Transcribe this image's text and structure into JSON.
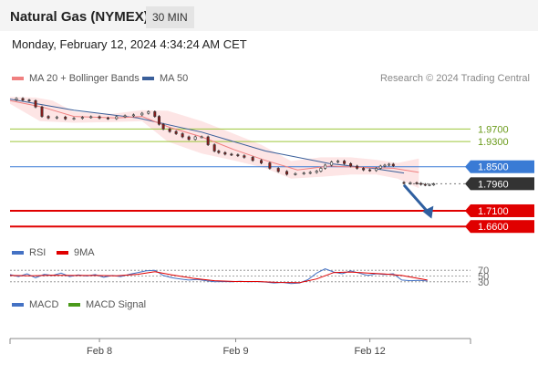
{
  "header": {
    "title": "Natural Gas (NYMEX)",
    "timeframe": "30 MIN",
    "datetime": "Monday, February 12, 2024 4:34:24 AM CET"
  },
  "legend": {
    "ma_bb_label": "MA 20 + Bollinger Bands",
    "ma_bb_color": "#f08080",
    "ma50_label": "MA 50",
    "ma50_color": "#3a5f9a"
  },
  "credit": "Research © 2024 Trading Central",
  "chart_data": {
    "type": "candlestick",
    "price_range": [
      1.62,
      2.09
    ],
    "levels": [
      {
        "label": "1.9700",
        "value": 1.97,
        "color": "#9dc63a",
        "text_color": "#6a9a1a",
        "style": "resistance"
      },
      {
        "label": "1.9300",
        "value": 1.93,
        "color": "#9dc63a",
        "text_color": "#6a9a1a",
        "style": "resistance"
      },
      {
        "label": "1.8500",
        "value": 1.85,
        "color": "#3a7bd5",
        "text_color": "#ffffff",
        "style": "pivot"
      },
      {
        "label": "1.7960",
        "value": 1.796,
        "color": "#333333",
        "text_color": "#ffffff",
        "style": "last"
      },
      {
        "label": "1.7100",
        "value": 1.71,
        "color": "#e00000",
        "text_color": "#ffffff",
        "style": "support"
      },
      {
        "label": "1.6600",
        "value": 1.66,
        "color": "#e00000",
        "text_color": "#ffffff",
        "style": "support"
      }
    ],
    "price_path": [
      [
        0,
        2.063
      ],
      [
        3,
        2.067
      ],
      [
        6,
        2.062
      ],
      [
        9,
        2.06
      ],
      [
        12,
        2.04
      ],
      [
        15,
        2.01
      ],
      [
        18,
        2.005
      ],
      [
        22,
        2.008
      ],
      [
        26,
        2.002
      ],
      [
        30,
        2.004
      ],
      [
        34,
        2.007
      ],
      [
        38,
        2.009
      ],
      [
        42,
        2.005
      ],
      [
        46,
        2.003
      ],
      [
        50,
        2.009
      ],
      [
        54,
        2.012
      ],
      [
        58,
        2.015
      ],
      [
        62,
        2.02
      ],
      [
        65,
        2.025
      ],
      [
        68,
        2.01
      ],
      [
        70,
        1.985
      ],
      [
        72,
        1.97
      ],
      [
        75,
        1.962
      ],
      [
        78,
        1.955
      ],
      [
        81,
        1.945
      ],
      [
        84,
        1.937
      ],
      [
        87,
        1.945
      ],
      [
        90,
        1.945
      ],
      [
        93,
        1.92
      ],
      [
        96,
        1.9
      ],
      [
        98,
        1.895
      ],
      [
        101,
        1.89
      ],
      [
        104,
        1.888
      ],
      [
        107,
        1.885
      ],
      [
        110,
        1.88
      ],
      [
        114,
        1.87
      ],
      [
        118,
        1.862
      ],
      [
        122,
        1.845
      ],
      [
        126,
        1.835
      ],
      [
        130,
        1.826
      ],
      [
        134,
        1.828
      ],
      [
        138,
        1.83
      ],
      [
        141,
        1.832
      ],
      [
        144,
        1.836
      ],
      [
        146,
        1.845
      ],
      [
        148,
        1.855
      ],
      [
        151,
        1.865
      ],
      [
        154,
        1.868
      ],
      [
        157,
        1.86
      ],
      [
        160,
        1.852
      ],
      [
        163,
        1.845
      ],
      [
        166,
        1.84
      ],
      [
        169,
        1.838
      ],
      [
        172,
        1.845
      ],
      [
        174,
        1.852
      ],
      [
        176,
        1.855
      ],
      [
        178,
        1.858
      ],
      [
        180,
        1.853
      ]
    ],
    "post_gap_path": [
      [
        182,
        1.8
      ],
      [
        185,
        1.797
      ],
      [
        188,
        1.799
      ],
      [
        191,
        1.797
      ],
      [
        193,
        1.794
      ],
      [
        195,
        1.792
      ],
      [
        197,
        1.793
      ],
      [
        199,
        1.795
      ]
    ],
    "ma50_path": [
      [
        0,
        2.065
      ],
      [
        30,
        2.03
      ],
      [
        60,
        2.005
      ],
      [
        90,
        1.96
      ],
      [
        120,
        1.9
      ],
      [
        150,
        1.86
      ],
      [
        170,
        1.845
      ],
      [
        185,
        1.83
      ]
    ],
    "ma20_path": [
      [
        0,
        2.06
      ],
      [
        15,
        2.04
      ],
      [
        30,
        2.01
      ],
      [
        50,
        2.005
      ],
      [
        62,
        2.01
      ],
      [
        75,
        1.975
      ],
      [
        90,
        1.945
      ],
      [
        105,
        1.905
      ],
      [
        120,
        1.87
      ],
      [
        135,
        1.84
      ],
      [
        150,
        1.852
      ],
      [
        165,
        1.848
      ],
      [
        180,
        1.845
      ],
      [
        192,
        1.832
      ]
    ],
    "bb_upper": [
      [
        0,
        2.072
      ],
      [
        12,
        2.07
      ],
      [
        20,
        2.06
      ],
      [
        30,
        2.025
      ],
      [
        48,
        2.018
      ],
      [
        62,
        2.03
      ],
      [
        74,
        2.028
      ],
      [
        90,
        1.995
      ],
      [
        105,
        1.955
      ],
      [
        118,
        1.92
      ],
      [
        132,
        1.868
      ],
      [
        146,
        1.88
      ],
      [
        160,
        1.88
      ],
      [
        172,
        1.872
      ],
      [
        182,
        1.862
      ],
      [
        192,
        1.876
      ]
    ],
    "bb_lower": [
      [
        0,
        2.05
      ],
      [
        14,
        1.995
      ],
      [
        30,
        1.99
      ],
      [
        48,
        1.992
      ],
      [
        62,
        1.995
      ],
      [
        74,
        1.93
      ],
      [
        90,
        1.892
      ],
      [
        105,
        1.87
      ],
      [
        120,
        1.845
      ],
      [
        132,
        1.812
      ],
      [
        146,
        1.818
      ],
      [
        160,
        1.825
      ],
      [
        172,
        1.825
      ],
      [
        182,
        1.812
      ],
      [
        192,
        1.782
      ]
    ],
    "forecast_arrow": {
      "from": [
        185,
        1.792
      ],
      "to": [
        198,
        1.685
      ]
    },
    "x_ticks": [
      {
        "label": "Feb 8",
        "pos": 42
      },
      {
        "label": "Feb 9",
        "pos": 106
      },
      {
        "label": "Feb 12",
        "pos": 169
      }
    ],
    "rsi": {
      "legend_rsi": "RSI",
      "legend_9ma": "9MA",
      "rsi_color": "#4472c4",
      "ma_color": "#e00000",
      "range": [
        20,
        80
      ],
      "levels": [
        {
          "label": "70",
          "value": 70
        },
        {
          "label": "50",
          "value": 50
        },
        {
          "label": "30",
          "value": 30
        }
      ],
      "rsi_path": [
        [
          0,
          55
        ],
        [
          4,
          48
        ],
        [
          8,
          58
        ],
        [
          12,
          44
        ],
        [
          16,
          56
        ],
        [
          20,
          52
        ],
        [
          24,
          60
        ],
        [
          28,
          48
        ],
        [
          32,
          54
        ],
        [
          36,
          50
        ],
        [
          40,
          55
        ],
        [
          44,
          46
        ],
        [
          48,
          52
        ],
        [
          52,
          48
        ],
        [
          56,
          56
        ],
        [
          60,
          62
        ],
        [
          64,
          68
        ],
        [
          68,
          70
        ],
        [
          72,
          52
        ],
        [
          76,
          44
        ],
        [
          80,
          40
        ],
        [
          84,
          36
        ],
        [
          88,
          38
        ],
        [
          92,
          34
        ],
        [
          96,
          30
        ],
        [
          100,
          31
        ],
        [
          104,
          30
        ],
        [
          108,
          32
        ],
        [
          112,
          30
        ],
        [
          116,
          31
        ],
        [
          120,
          29
        ],
        [
          124,
          26
        ],
        [
          128,
          28
        ],
        [
          132,
          24
        ],
        [
          136,
          26
        ],
        [
          140,
          38
        ],
        [
          144,
          60
        ],
        [
          148,
          75
        ],
        [
          152,
          64
        ],
        [
          156,
          58
        ],
        [
          160,
          68
        ],
        [
          164,
          60
        ],
        [
          168,
          52
        ],
        [
          172,
          58
        ],
        [
          176,
          55
        ],
        [
          180,
          58
        ],
        [
          184,
          36
        ],
        [
          188,
          34
        ],
        [
          192,
          35
        ],
        [
          196,
          33
        ]
      ],
      "ma_path": [
        [
          0,
          52
        ],
        [
          10,
          51
        ],
        [
          20,
          53
        ],
        [
          30,
          52
        ],
        [
          40,
          52
        ],
        [
          50,
          51
        ],
        [
          60,
          56
        ],
        [
          68,
          65
        ],
        [
          76,
          54
        ],
        [
          86,
          42
        ],
        [
          96,
          34
        ],
        [
          106,
          31
        ],
        [
          116,
          31
        ],
        [
          126,
          28
        ],
        [
          136,
          27
        ],
        [
          144,
          40
        ],
        [
          152,
          62
        ],
        [
          160,
          64
        ],
        [
          168,
          60
        ],
        [
          176,
          57
        ],
        [
          184,
          52
        ],
        [
          190,
          44
        ],
        [
          196,
          36
        ]
      ]
    },
    "macd": {
      "legend_macd": "MACD",
      "legend_signal": "MACD Signal",
      "macd_color": "#4472c4",
      "signal_color": "#4a9a1a"
    }
  }
}
